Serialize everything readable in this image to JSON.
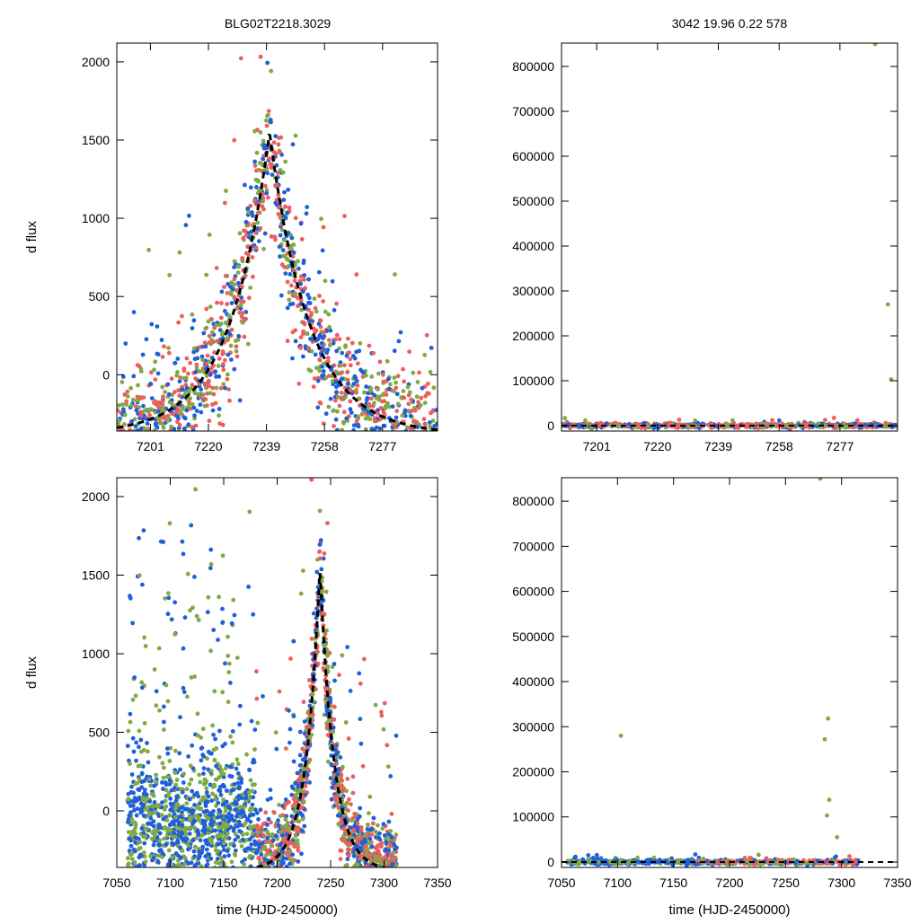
{
  "figure": {
    "title_left": "BLG02T2218.3029",
    "title_right": "3042  19.96  0.22  578"
  },
  "colors": {
    "green": "#7faa45",
    "blue": "#1f5fd8",
    "red": "#ec5f5c",
    "model": "#000000"
  },
  "chart_data": [
    {
      "id": "top-left",
      "type": "scatter",
      "title": "BLG02T2218.3029",
      "xlabel": "",
      "ylabel": "d flux",
      "xlim": [
        7190,
        7295
      ],
      "ylim": [
        -360,
        2120
      ],
      "xticks": [
        7201,
        7220,
        7239,
        7258,
        7277
      ],
      "yticks": [
        0,
        500,
        1000,
        1500,
        2000
      ],
      "xtick_labels": [
        "7201",
        "7220",
        "7239",
        "7258",
        "7277"
      ],
      "ytick_labels": [
        "0",
        "500",
        "1000",
        "1500",
        "2000"
      ],
      "model": {
        "name": "point-lens fit",
        "t0": 7240,
        "peak": 1550,
        "base": -380,
        "tau": 13,
        "style": "dashed"
      },
      "series": [
        {
          "name": "green",
          "role": "scattered background",
          "x_range": [
            7190,
            7295
          ],
          "y_range": [
            -360,
            2120
          ]
        },
        {
          "name": "blue",
          "role": "scattered background",
          "x_range": [
            7190,
            7295
          ],
          "y_range": [
            -360,
            2120
          ]
        },
        {
          "name": "red",
          "role": "scattered background",
          "x_range": [
            7190,
            7295
          ],
          "y_range": [
            -360,
            2120
          ]
        }
      ]
    },
    {
      "id": "top-right",
      "type": "scatter",
      "title": "3042  19.96  0.22  578",
      "xlabel": "",
      "ylabel": "",
      "xlim": [
        7190,
        7295
      ],
      "ylim": [
        -12000,
        852000
      ],
      "xticks": [
        7201,
        7220,
        7239,
        7258,
        7277
      ],
      "yticks": [
        0,
        100000,
        200000,
        300000,
        400000,
        500000,
        600000,
        700000,
        800000
      ],
      "xtick_labels": [
        "7201",
        "7220",
        "7239",
        "7258",
        "7277"
      ],
      "ytick_labels": [
        "0",
        "100000",
        "200000",
        "300000",
        "400000",
        "500000",
        "600000",
        "700000",
        "800000"
      ],
      "outliers": [
        {
          "x": 7288,
          "y": 850000,
          "series": "green"
        },
        {
          "x": 7292,
          "y": 270000,
          "series": "green"
        },
        {
          "x": 7293,
          "y": 103000,
          "series": "green"
        }
      ],
      "series": [
        {
          "name": "green",
          "baseline": 0
        },
        {
          "name": "blue",
          "baseline": 0
        },
        {
          "name": "red",
          "baseline": 0
        }
      ]
    },
    {
      "id": "bottom-left",
      "type": "scatter",
      "xlabel": "time (HJD-2450000)",
      "ylabel": "d flux",
      "xlim": [
        7050,
        7350
      ],
      "ylim": [
        -360,
        2120
      ],
      "xticks": [
        7050,
        7100,
        7150,
        7200,
        7250,
        7300,
        7350
      ],
      "yticks": [
        0,
        500,
        1000,
        1500,
        2000
      ],
      "xtick_labels": [
        "7050",
        "7100",
        "7150",
        "7200",
        "7250",
        "7300",
        "7350"
      ],
      "ytick_labels": [
        "0",
        "500",
        "1000",
        "1500",
        "2000"
      ],
      "model": {
        "name": "point-lens fit",
        "t0": 7240,
        "peak": 1550,
        "base": -380,
        "tau": 13,
        "style": "dashed"
      },
      "series": [
        {
          "name": "green",
          "x_range": [
            7055,
            7315
          ]
        },
        {
          "name": "blue",
          "x_range": [
            7065,
            7310
          ]
        },
        {
          "name": "red",
          "x_range": [
            7180,
            7312
          ]
        }
      ]
    },
    {
      "id": "bottom-right",
      "type": "scatter",
      "xlabel": "time (HJD-2450000)",
      "ylabel": "",
      "xlim": [
        7050,
        7350
      ],
      "ylim": [
        -12000,
        852000
      ],
      "xticks": [
        7050,
        7100,
        7150,
        7200,
        7250,
        7300,
        7350
      ],
      "yticks": [
        0,
        100000,
        200000,
        300000,
        400000,
        500000,
        600000,
        700000,
        800000
      ],
      "xtick_labels": [
        "7050",
        "7100",
        "7150",
        "7200",
        "7250",
        "7300",
        "7350"
      ],
      "ytick_labels": [
        "0",
        "100000",
        "200000",
        "300000",
        "400000",
        "500000",
        "600000",
        "700000",
        "800000"
      ],
      "outliers": [
        {
          "x": 7103,
          "y": 280000,
          "series": "green"
        },
        {
          "x": 7281,
          "y": 850000,
          "series": "green"
        },
        {
          "x": 7288,
          "y": 318000,
          "series": "green"
        },
        {
          "x": 7285,
          "y": 272000,
          "series": "green"
        },
        {
          "x": 7289,
          "y": 138000,
          "series": "green"
        },
        {
          "x": 7287,
          "y": 103000,
          "series": "green"
        },
        {
          "x": 7296,
          "y": 55000,
          "series": "green"
        }
      ],
      "series": [
        {
          "name": "green",
          "baseline": 0
        },
        {
          "name": "blue",
          "baseline": 0
        },
        {
          "name": "red",
          "baseline": 0
        }
      ]
    }
  ]
}
